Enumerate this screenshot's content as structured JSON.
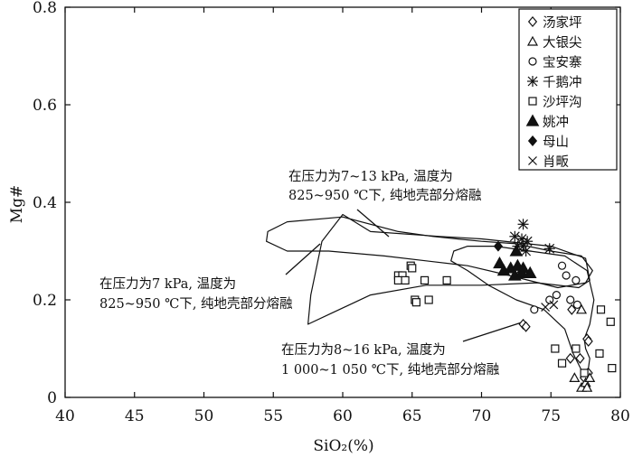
{
  "chart_data": {
    "type": "scatter",
    "xlabel": "SiO₂(%)",
    "ylabel": "Mg#",
    "xlim": [
      40,
      80
    ],
    "ylim": [
      0,
      0.8
    ],
    "xticks": [
      "40",
      "45",
      "50",
      "55",
      "60",
      "65",
      "70",
      "75",
      "80"
    ],
    "yticks": [
      "0",
      "0.2",
      "0.4",
      "0.6",
      "0.8"
    ],
    "legend_position": "top-right",
    "grid": false,
    "series": [
      {
        "name": "汤家坪",
        "marker": "diamond-open",
        "points": [
          [
            73.0,
            0.15
          ],
          [
            73.2,
            0.145
          ],
          [
            76.5,
            0.18
          ],
          [
            77.6,
            0.12
          ],
          [
            77.7,
            0.115
          ],
          [
            77.1,
            0.08
          ],
          [
            76.4,
            0.08
          ],
          [
            77.7,
            0.05
          ],
          [
            77.4,
            0.04
          ]
        ]
      },
      {
        "name": "大银尖",
        "marker": "triangle-open",
        "points": [
          [
            77.2,
            0.18
          ],
          [
            76.7,
            0.04
          ],
          [
            77.2,
            0.02
          ],
          [
            77.5,
            0.03
          ],
          [
            77.8,
            0.04
          ],
          [
            77.6,
            0.02
          ]
        ]
      },
      {
        "name": "宝安寨",
        "marker": "circle-open",
        "points": [
          [
            75.8,
            0.27
          ],
          [
            76.1,
            0.25
          ],
          [
            76.8,
            0.24
          ],
          [
            75.4,
            0.21
          ],
          [
            74.9,
            0.2
          ],
          [
            76.4,
            0.2
          ],
          [
            76.9,
            0.19
          ],
          [
            73.8,
            0.18
          ]
        ]
      },
      {
        "name": "千鹅冲",
        "marker": "star",
        "points": [
          [
            73.0,
            0.355
          ],
          [
            72.4,
            0.33
          ],
          [
            72.9,
            0.325
          ],
          [
            73.3,
            0.32
          ],
          [
            72.6,
            0.31
          ],
          [
            73.0,
            0.31
          ],
          [
            73.2,
            0.3
          ],
          [
            74.9,
            0.305
          ]
        ]
      },
      {
        "name": "沙坪沟",
        "marker": "square-open",
        "points": [
          [
            64.0,
            0.25
          ],
          [
            64.3,
            0.25
          ],
          [
            64.0,
            0.24
          ],
          [
            64.5,
            0.24
          ],
          [
            64.9,
            0.27
          ],
          [
            65.0,
            0.265
          ],
          [
            65.9,
            0.24
          ],
          [
            67.5,
            0.24
          ],
          [
            65.2,
            0.2
          ],
          [
            65.3,
            0.195
          ],
          [
            66.2,
            0.2
          ],
          [
            78.6,
            0.18
          ],
          [
            79.3,
            0.155
          ],
          [
            75.3,
            0.1
          ],
          [
            76.8,
            0.1
          ],
          [
            77.4,
            0.05
          ],
          [
            78.5,
            0.09
          ],
          [
            75.8,
            0.07
          ],
          [
            79.4,
            0.06
          ]
        ]
      },
      {
        "name": "姚冲",
        "marker": "triangle-filled",
        "points": [
          [
            71.6,
            0.26
          ],
          [
            72.1,
            0.265
          ],
          [
            72.6,
            0.27
          ],
          [
            73.0,
            0.265
          ],
          [
            72.4,
            0.25
          ],
          [
            72.9,
            0.255
          ],
          [
            73.5,
            0.255
          ],
          [
            71.3,
            0.275
          ],
          [
            72.5,
            0.3
          ]
        ]
      },
      {
        "name": "母山",
        "marker": "diamond-filled",
        "points": [
          [
            71.2,
            0.31
          ]
        ]
      },
      {
        "name": "肖畈",
        "marker": "cross",
        "points": [
          [
            74.6,
            0.185
          ],
          [
            75.2,
            0.19
          ]
        ]
      }
    ],
    "annotations": [
      {
        "lines": [
          "在压力为7~13 kPa, 温度为",
          "825~950 ℃下, 纯地壳部分熔融"
        ]
      },
      {
        "lines": [
          "在压力为7 kPa, 温度为",
          "825~950 ℃下, 纯地壳部分熔融"
        ]
      },
      {
        "lines": [
          "在压力为8~16 kPa, 温度为",
          "1 000~1 050 ℃下, 纯地壳部分熔融"
        ]
      }
    ],
    "fields": [
      {
        "name": "field-7-13kpa",
        "outline": [
          [
            54.6,
            0.34
          ],
          [
            56.0,
            0.36
          ],
          [
            60.0,
            0.37
          ],
          [
            64.0,
            0.34
          ],
          [
            66.5,
            0.33
          ],
          [
            70.0,
            0.32
          ],
          [
            72.5,
            0.315
          ],
          [
            75.0,
            0.3
          ],
          [
            77.2,
            0.29
          ],
          [
            78.0,
            0.26
          ],
          [
            77.5,
            0.235
          ],
          [
            75.5,
            0.225
          ],
          [
            72.0,
            0.25
          ],
          [
            69.0,
            0.27
          ],
          [
            66.0,
            0.28
          ],
          [
            63.0,
            0.29
          ],
          [
            59.0,
            0.3
          ],
          [
            56.0,
            0.3
          ],
          [
            54.5,
            0.32
          ],
          [
            54.6,
            0.34
          ]
        ]
      },
      {
        "name": "field-7kpa",
        "outline": [
          [
            57.5,
            0.15
          ],
          [
            57.7,
            0.21
          ],
          [
            58.5,
            0.32
          ],
          [
            60.0,
            0.375
          ],
          [
            62.0,
            0.34
          ],
          [
            67.0,
            0.33
          ],
          [
            70.0,
            0.325
          ],
          [
            75.0,
            0.31
          ],
          [
            77.5,
            0.285
          ],
          [
            77.8,
            0.24
          ],
          [
            77.0,
            0.225
          ],
          [
            74.0,
            0.235
          ],
          [
            70.0,
            0.23
          ],
          [
            66.0,
            0.23
          ],
          [
            62.0,
            0.21
          ],
          [
            59.0,
            0.17
          ],
          [
            57.5,
            0.15
          ]
        ]
      },
      {
        "name": "field-8-16kpa",
        "outline": [
          [
            68.0,
            0.3
          ],
          [
            69.0,
            0.31
          ],
          [
            71.0,
            0.31
          ],
          [
            73.5,
            0.3
          ],
          [
            76.0,
            0.29
          ],
          [
            77.6,
            0.26
          ],
          [
            78.1,
            0.2
          ],
          [
            77.8,
            0.15
          ],
          [
            77.4,
            0.12
          ],
          [
            77.5,
            0.1
          ],
          [
            77.8,
            0.08
          ],
          [
            77.7,
            0.06
          ],
          [
            77.3,
            0.05
          ],
          [
            76.6,
            0.09
          ],
          [
            76.0,
            0.14
          ],
          [
            74.5,
            0.18
          ],
          [
            72.5,
            0.2
          ],
          [
            70.5,
            0.23
          ],
          [
            69.0,
            0.26
          ],
          [
            67.8,
            0.28
          ],
          [
            68.0,
            0.3
          ]
        ]
      }
    ]
  }
}
